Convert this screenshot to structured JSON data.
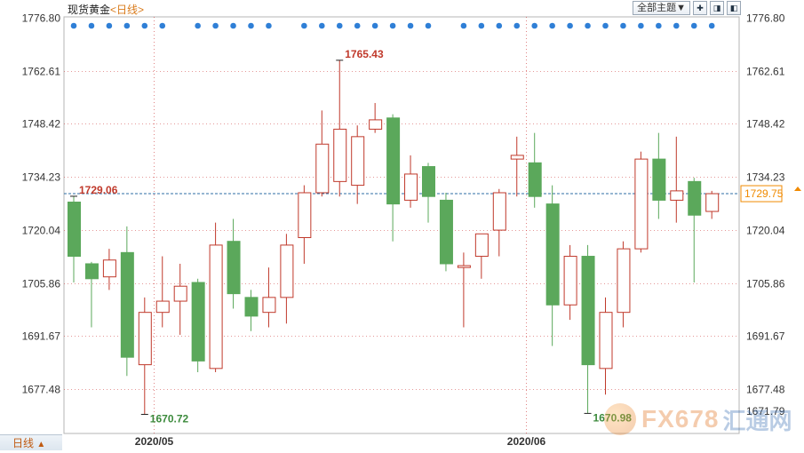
{
  "header": {
    "title": "现货黄金",
    "subtitle": "<日线>",
    "theme_select": "全部主题▼",
    "tool_icons": [
      "crosshair-icon",
      "zoom-in-icon",
      "zoom-out-icon"
    ]
  },
  "footer": {
    "period_label": "日线",
    "period_arrow": "▲"
  },
  "watermark": {
    "brand": "FX678",
    "brand_cn": "汇通网"
  },
  "colors": {
    "up": "#c0392b",
    "down": "#5ba85b",
    "grid": "#cc3333",
    "price_line": "#2e6da4",
    "dots": "#2f7fd6",
    "price_tag": "#f08a00"
  },
  "chart_data": {
    "type": "candlestick",
    "title": "现货黄金",
    "subtitle": "<日线>",
    "ylim": [
      1671.79,
      1776.8
    ],
    "y_ticks": [
      1776.8,
      1762.61,
      1748.42,
      1734.23,
      1720.04,
      1705.86,
      1691.67,
      1677.48
    ],
    "y_tick_labels": [
      "1776.80",
      "1762.61",
      "1748.42",
      "1734.23",
      "1720.04",
      "1705.86",
      "1691.67",
      "1677.48"
    ],
    "y_bottom_label": "1671.79",
    "x_labels": [
      {
        "index": 4.5,
        "label": "2020/05"
      },
      {
        "index": 25.5,
        "label": "2020/06"
      }
    ],
    "current_price": 1729.75,
    "current_price_label": "1729.75",
    "annotations": [
      {
        "index": 0,
        "value": 1729.06,
        "label": "1729.06",
        "color": "#c0392b"
      },
      {
        "index": 15,
        "value": 1765.43,
        "label": "1765.43",
        "color": "#c0392b"
      },
      {
        "index": 4,
        "value": 1670.72,
        "label": "1670.72",
        "color": "#3d8b3d"
      },
      {
        "index": 29,
        "value": 1670.98,
        "label": "1670.98",
        "color": "#3d8b3d"
      }
    ],
    "dots_gaps": [
      6,
      12,
      21
    ],
    "candles": [
      {
        "o": 1727.5,
        "h": 1729.06,
        "l": 1706.0,
        "c": 1713.0
      },
      {
        "o": 1711.0,
        "h": 1711.5,
        "l": 1694.0,
        "c": 1707.0
      },
      {
        "o": 1707.5,
        "h": 1715.0,
        "l": 1704.0,
        "c": 1712.0
      },
      {
        "o": 1714.0,
        "h": 1721.0,
        "l": 1681.0,
        "c": 1686.0
      },
      {
        "o": 1684.0,
        "h": 1702.0,
        "l": 1670.72,
        "c": 1698.0
      },
      {
        "o": 1698.0,
        "h": 1713.0,
        "l": 1694.0,
        "c": 1701.0
      },
      {
        "o": 1701.0,
        "h": 1711.0,
        "l": 1692.0,
        "c": 1705.0
      },
      {
        "o": 1706.0,
        "h": 1707.0,
        "l": 1682.0,
        "c": 1685.0
      },
      {
        "o": 1683.0,
        "h": 1722.0,
        "l": 1682.0,
        "c": 1716.0
      },
      {
        "o": 1717.0,
        "h": 1723.0,
        "l": 1699.0,
        "c": 1703.0
      },
      {
        "o": 1702.0,
        "h": 1704.0,
        "l": 1693.0,
        "c": 1697.0
      },
      {
        "o": 1698.0,
        "h": 1710.0,
        "l": 1694.0,
        "c": 1702.0
      },
      {
        "o": 1702.0,
        "h": 1719.0,
        "l": 1695.0,
        "c": 1716.0
      },
      {
        "o": 1718.0,
        "h": 1732.0,
        "l": 1711.0,
        "c": 1730.0
      },
      {
        "o": 1730.0,
        "h": 1752.0,
        "l": 1729.0,
        "c": 1743.0
      },
      {
        "o": 1733.0,
        "h": 1765.43,
        "l": 1729.0,
        "c": 1747.0
      },
      {
        "o": 1732.0,
        "h": 1748.0,
        "l": 1727.0,
        "c": 1745.0
      },
      {
        "o": 1747.0,
        "h": 1754.0,
        "l": 1746.0,
        "c": 1749.5
      },
      {
        "o": 1750.0,
        "h": 1751.0,
        "l": 1717.0,
        "c": 1727.0
      },
      {
        "o": 1728.0,
        "h": 1740.0,
        "l": 1726.0,
        "c": 1735.0
      },
      {
        "o": 1737.0,
        "h": 1738.0,
        "l": 1722.0,
        "c": 1729.0
      },
      {
        "o": 1728.0,
        "h": 1730.0,
        "l": 1709.0,
        "c": 1711.0
      },
      {
        "o": 1710.0,
        "h": 1714.0,
        "l": 1694.0,
        "c": 1710.5
      },
      {
        "o": 1713.0,
        "h": 1718.0,
        "l": 1707.0,
        "c": 1719.0
      },
      {
        "o": 1720.0,
        "h": 1731.0,
        "l": 1713.0,
        "c": 1730.0
      },
      {
        "o": 1739.0,
        "h": 1745.0,
        "l": 1729.0,
        "c": 1740.0
      },
      {
        "o": 1738.0,
        "h": 1746.0,
        "l": 1726.0,
        "c": 1729.0
      },
      {
        "o": 1727.0,
        "h": 1732.0,
        "l": 1689.0,
        "c": 1700.0
      },
      {
        "o": 1700.0,
        "h": 1716.0,
        "l": 1696.0,
        "c": 1713.0
      },
      {
        "o": 1713.0,
        "h": 1716.0,
        "l": 1670.98,
        "c": 1684.0
      },
      {
        "o": 1683.0,
        "h": 1702.0,
        "l": 1676.0,
        "c": 1698.0
      },
      {
        "o": 1698.0,
        "h": 1717.0,
        "l": 1694.0,
        "c": 1715.0
      },
      {
        "o": 1715.0,
        "h": 1741.0,
        "l": 1714.0,
        "c": 1739.0
      },
      {
        "o": 1739.0,
        "h": 1746.0,
        "l": 1723.0,
        "c": 1728.0
      },
      {
        "o": 1728.0,
        "h": 1745.0,
        "l": 1722.0,
        "c": 1730.5
      },
      {
        "o": 1733.0,
        "h": 1734.0,
        "l": 1706.0,
        "c": 1724.0
      },
      {
        "o": 1725.0,
        "h": 1730.5,
        "l": 1723.0,
        "c": 1729.75
      }
    ]
  }
}
